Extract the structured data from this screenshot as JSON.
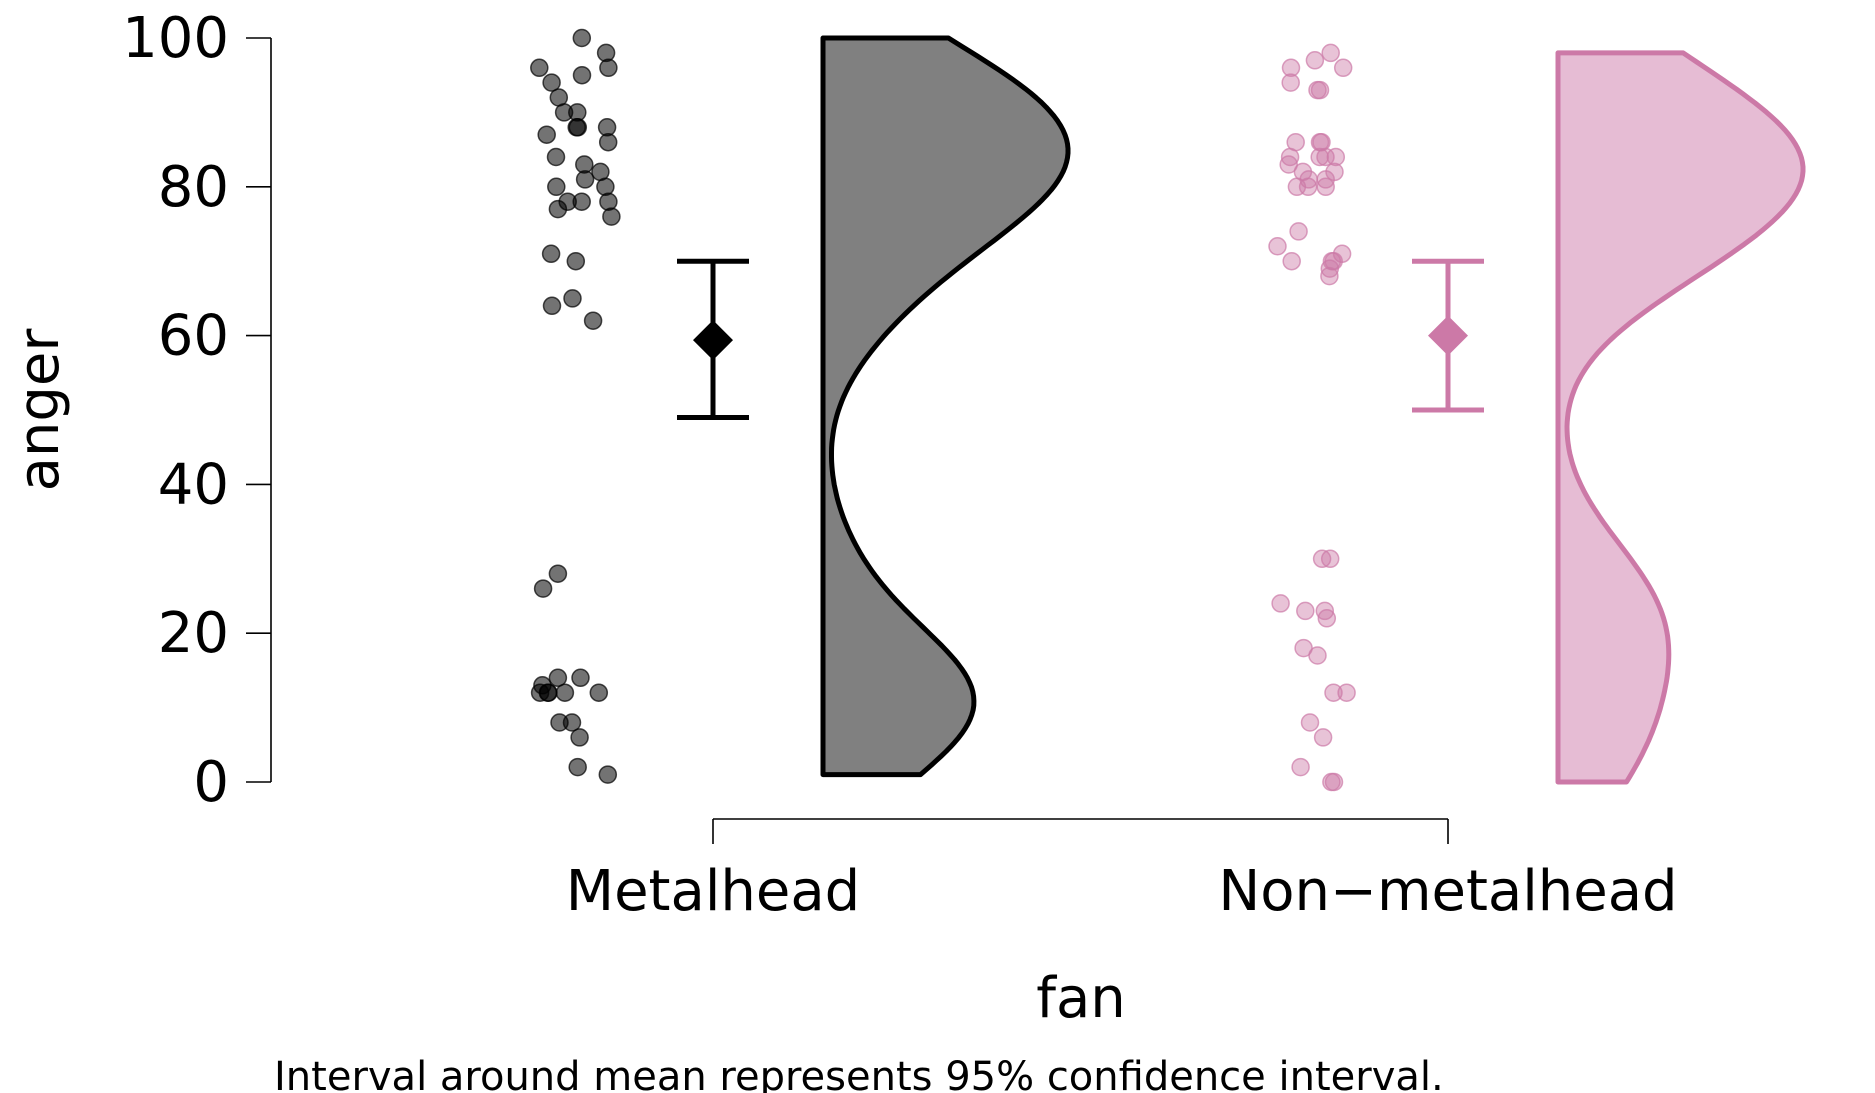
{
  "chart_data": {
    "type": "raincloud",
    "xlabel": "fan",
    "ylabel": "anger",
    "caption": "Interval around mean represents 95% confidence interval.",
    "ylim": [
      0,
      100
    ],
    "yticks": [
      0,
      20,
      40,
      60,
      80,
      100
    ],
    "ytick_labels": [
      "0",
      "20",
      "40",
      "60",
      "80",
      "100"
    ],
    "categories": [
      "Metalhead",
      "Non−metalhead"
    ],
    "grid": false,
    "legend": "none",
    "series": [
      {
        "category": "Metalhead",
        "color": "#000000",
        "fill": "#808080",
        "mean": 59.4,
        "ci": [
          49,
          70
        ],
        "points": [
          100,
          98,
          96,
          96,
          95,
          94,
          92,
          90,
          90,
          88,
          88,
          88,
          87,
          86,
          84,
          83,
          82,
          81,
          80,
          80,
          78,
          78,
          78,
          77,
          76,
          71,
          70,
          65,
          64,
          62,
          28,
          26,
          14,
          14,
          13,
          12,
          12,
          12,
          12,
          12,
          8,
          8,
          6,
          2,
          1
        ],
        "density_range": [
          1,
          100
        ]
      },
      {
        "category": "Non−metalhead",
        "color": "#cc79a7",
        "fill": "#e6bcd4",
        "mean": 60,
        "ci": [
          50,
          70
        ],
        "points": [
          98,
          97,
          96,
          96,
          94,
          93,
          93,
          86,
          86,
          86,
          84,
          84,
          84,
          84,
          83,
          82,
          82,
          81,
          81,
          80,
          80,
          80,
          74,
          72,
          71,
          70,
          70,
          70,
          69,
          68,
          30,
          30,
          24,
          23,
          23,
          22,
          18,
          17,
          12,
          12,
          8,
          6,
          2,
          0,
          0
        ],
        "density_range": [
          0,
          98
        ]
      }
    ]
  }
}
